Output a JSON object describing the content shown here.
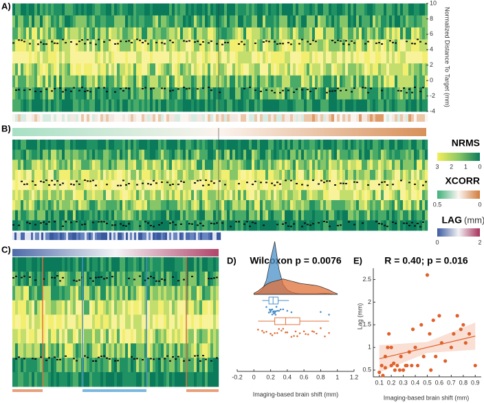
{
  "panel_labels": [
    "A)",
    "B)",
    "C)",
    "D)",
    "E)"
  ],
  "heatmap_axis": {
    "label": "Normalized Distance To Target (mm)",
    "ylim": [
      -4,
      10
    ],
    "yticks": [
      10,
      8,
      6,
      4,
      2,
      0,
      -2,
      -4
    ]
  },
  "legend": {
    "nrms": {
      "title": "NRMS",
      "ticks": [
        3,
        2,
        1,
        0
      ]
    },
    "xcorr": {
      "title": "XCORR",
      "ticks": [
        0.5,
        0
      ]
    },
    "lag": {
      "title": "LAG",
      "unit": "(mm)",
      "ticks": [
        0,
        2
      ]
    }
  },
  "chart_data": [
    {
      "type": "distribution",
      "title": "Wilcoxon p = 0.0076",
      "xlabel": "Imaging-based brain shift (mm)",
      "xlim": [
        -0.2,
        1.2
      ],
      "xticks": [
        -0.2,
        0,
        0.2,
        0.4,
        0.6,
        0.8,
        1,
        1.2
      ],
      "density_x": [
        0,
        0.05,
        0.1,
        0.15,
        0.2,
        0.25,
        0.3,
        0.35,
        0.4,
        0.45,
        0.5,
        0.55,
        0.6,
        0.65,
        0.7,
        0.75,
        0.8,
        0.85,
        0.9,
        0.95,
        1
      ],
      "series": [
        {
          "color": "#4a90c8",
          "values": [
            0.15,
            0.18,
            0.19,
            0.2,
            0.2,
            0.21,
            0.22,
            0.22,
            0.23,
            0.24,
            0.24,
            0.25,
            0.26,
            0.26,
            0.27,
            0.28,
            0.3,
            0.32,
            0.35,
            0.4,
            0.45,
            0.8,
            0.9
          ],
          "density": [
            0,
            0.1,
            0.4,
            1.3,
            3.2,
            4.8,
            2.3,
            0.9,
            0.4,
            0.2,
            0.1,
            0.05,
            0.05,
            0.05,
            0.05,
            0.05,
            0.08,
            0.1,
            0.08,
            0.02,
            0
          ],
          "box": {
            "min": 0.1,
            "q1": 0.18,
            "median": 0.23,
            "q3": 0.29,
            "max": 0.42
          }
        },
        {
          "color": "#e0703a",
          "values": [
            0.05,
            0.1,
            0.12,
            0.15,
            0.2,
            0.22,
            0.25,
            0.28,
            0.3,
            0.33,
            0.35,
            0.38,
            0.4,
            0.45,
            0.48,
            0.5,
            0.52,
            0.55,
            0.6,
            0.62,
            0.65,
            0.7,
            0.72,
            0.75,
            0.8,
            0.85,
            0.9
          ],
          "density": [
            0.1,
            0.3,
            0.6,
            0.9,
            1.1,
            1.2,
            1.3,
            1.4,
            1.3,
            1.2,
            1.1,
            1.0,
            0.95,
            0.9,
            0.85,
            0.8,
            0.7,
            0.55,
            0.4,
            0.2,
            0.05
          ],
          "box": {
            "min": 0.05,
            "q1": 0.25,
            "median": 0.38,
            "q3": 0.55,
            "max": 0.9
          }
        }
      ]
    },
    {
      "type": "scatter",
      "title": "R = 0.40; p = 0.016",
      "xlabel": "Imaging-based brain shift (mm)",
      "ylabel": "Lag (mm)",
      "color": "#e0602a",
      "xlim": [
        0.05,
        0.95
      ],
      "ylim": [
        0.35,
        2.75
      ],
      "xticks": [
        0.1,
        0.2,
        0.3,
        0.4,
        0.5,
        0.6,
        0.7,
        0.8,
        0.9
      ],
      "yticks": [
        0.5,
        1,
        1.5,
        2,
        2.5
      ],
      "x": [
        0.1,
        0.12,
        0.13,
        0.15,
        0.15,
        0.17,
        0.18,
        0.2,
        0.2,
        0.22,
        0.23,
        0.25,
        0.27,
        0.28,
        0.3,
        0.32,
        0.33,
        0.35,
        0.37,
        0.38,
        0.4,
        0.42,
        0.45,
        0.47,
        0.5,
        0.52,
        0.53,
        0.55,
        0.57,
        0.6,
        0.62,
        0.65,
        0.7,
        0.72,
        0.75,
        0.78,
        0.8,
        0.82,
        0.85,
        0.9
      ],
      "values": [
        0.45,
        0.6,
        0.38,
        0.55,
        0.8,
        1.0,
        1.3,
        1.0,
        0.6,
        0.65,
        0.5,
        0.6,
        0.5,
        0.8,
        0.5,
        0.6,
        0.6,
        0.9,
        0.6,
        1.4,
        1.0,
        0.6,
        1.5,
        0.8,
        2.6,
        1.3,
        0.5,
        1.6,
        0.8,
        1.7,
        1.1,
        0.7,
        1.0,
        1.3,
        1.7,
        1.4,
        1.5,
        1.1,
        1.3,
        0.6
      ],
      "fit": {
        "x": [
          0.1,
          0.5,
          0.9
        ],
        "values": [
          0.75,
          1.0,
          1.25
        ],
        "lower": [
          0.45,
          0.88,
          0.95
        ],
        "upper": [
          1.05,
          1.12,
          1.55
        ]
      }
    }
  ]
}
